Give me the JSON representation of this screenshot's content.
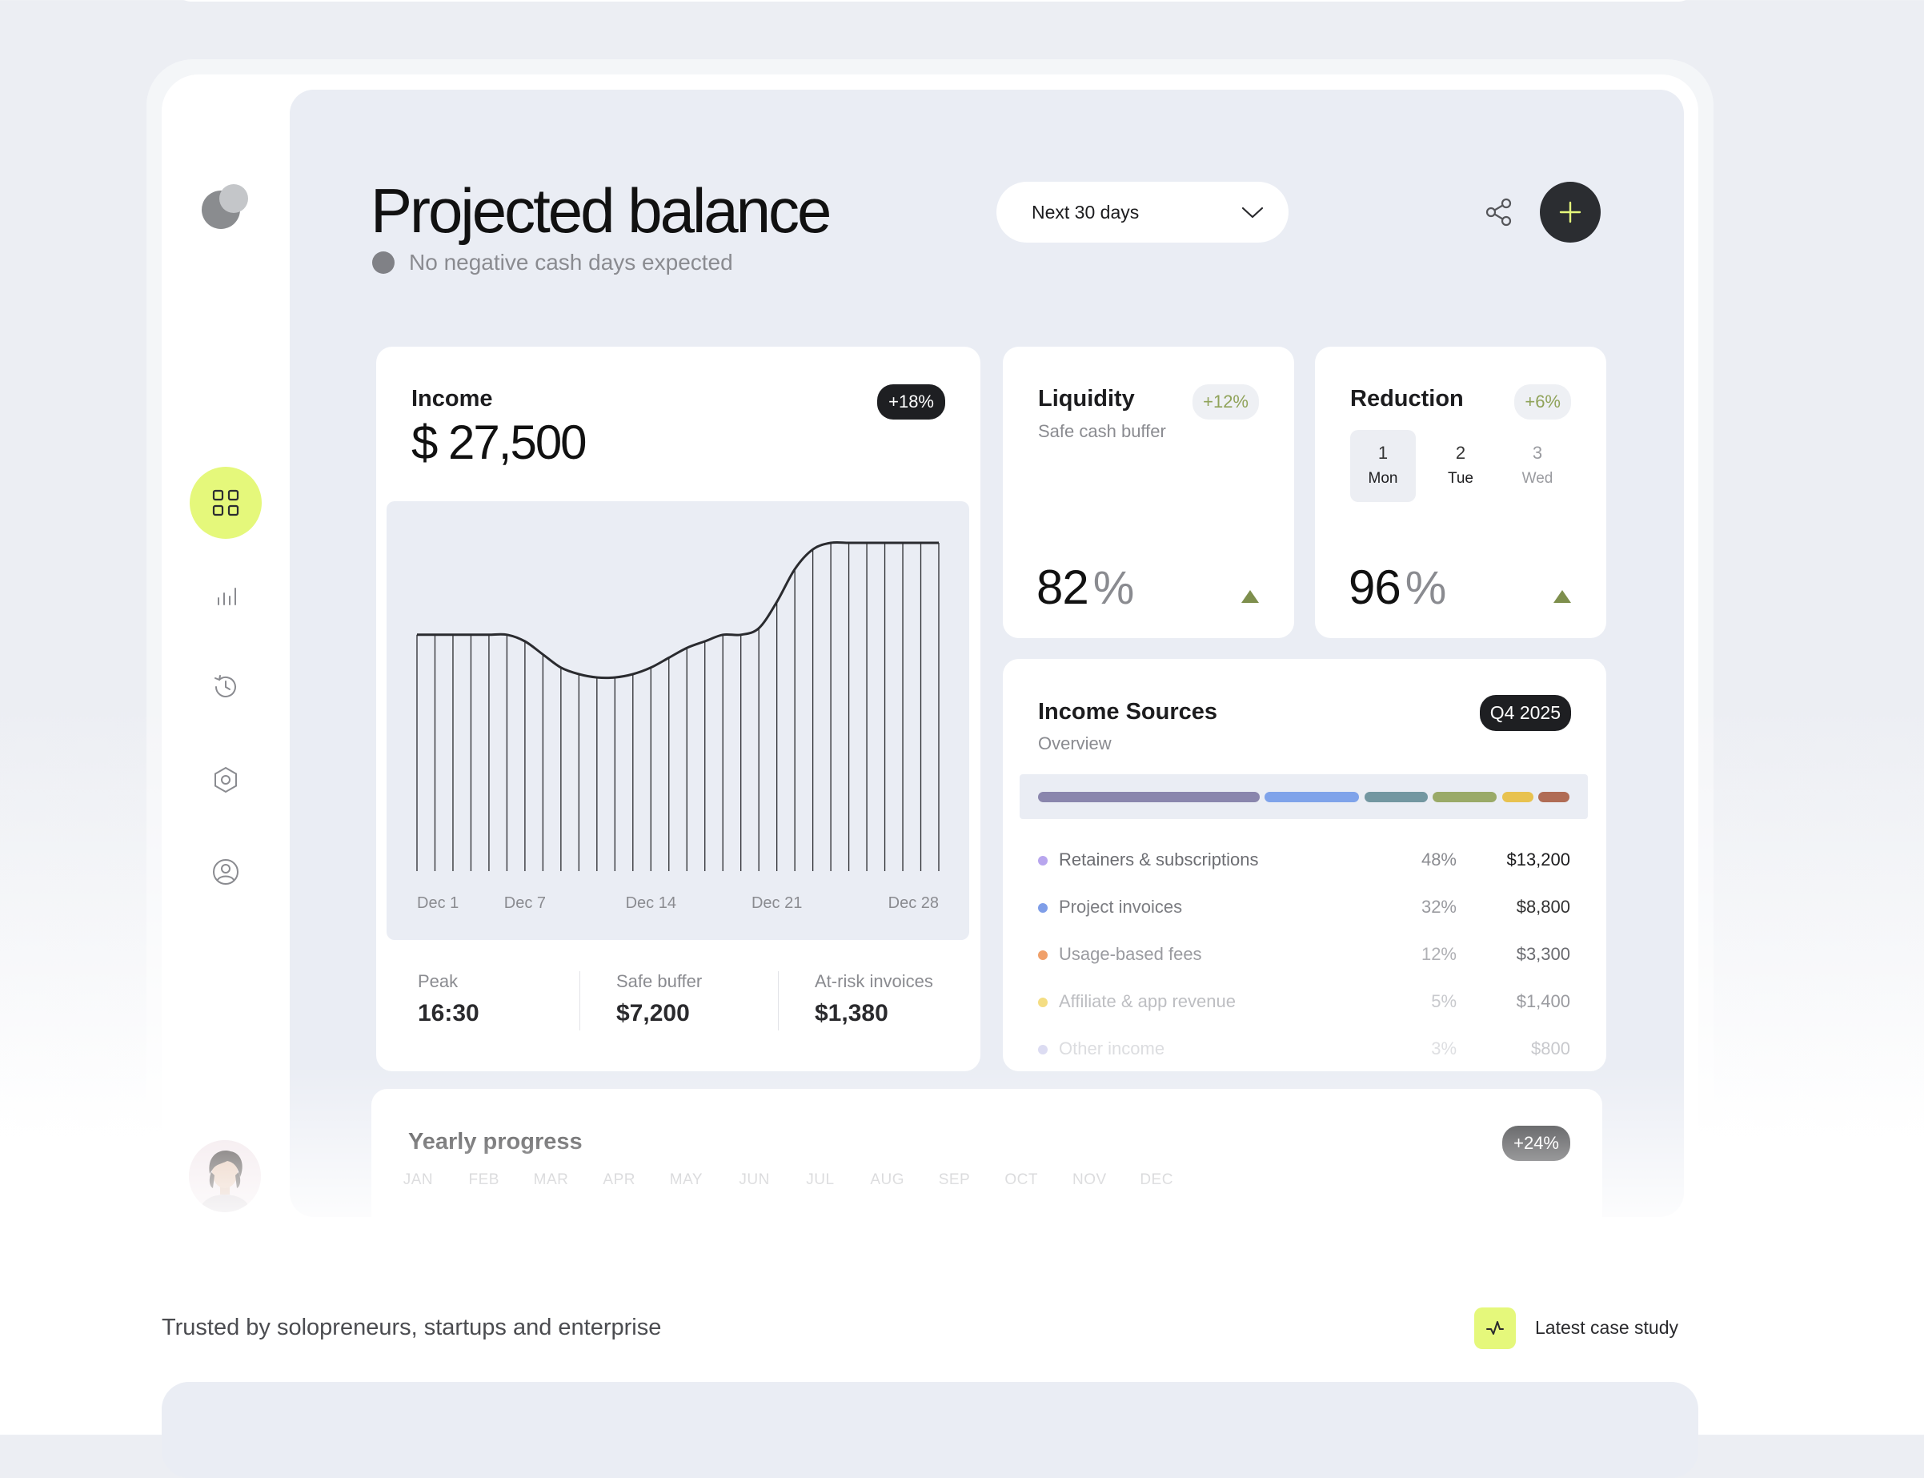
{
  "header": {
    "title": "Projected balance",
    "status": "No negative cash days expected",
    "range_label": "Next 30 days"
  },
  "income": {
    "title": "Income",
    "badge": "+18%",
    "amount": "$ 27,500",
    "x_ticks": [
      "Dec 1",
      "Dec 7",
      "Dec 14",
      "Dec 21",
      "Dec 28"
    ],
    "stats": [
      {
        "label": "Peak",
        "value": "16:30"
      },
      {
        "label": "Safe buffer",
        "value": "$7,200"
      },
      {
        "label": "At-risk invoices",
        "value": "$1,380"
      }
    ]
  },
  "chart_data": {
    "type": "line",
    "x": [
      "Dec 1",
      "Dec 2",
      "Dec 3",
      "Dec 4",
      "Dec 5",
      "Dec 6",
      "Dec 7",
      "Dec 8",
      "Dec 9",
      "Dec 10",
      "Dec 11",
      "Dec 12",
      "Dec 13",
      "Dec 14",
      "Dec 15",
      "Dec 16",
      "Dec 17",
      "Dec 18",
      "Dec 19",
      "Dec 20",
      "Dec 21",
      "Dec 22",
      "Dec 23",
      "Dec 24",
      "Dec 25",
      "Dec 26",
      "Dec 27",
      "Dec 28",
      "Dec 29",
      "Dec 30"
    ],
    "values": [
      0.72,
      0.72,
      0.72,
      0.72,
      0.72,
      0.72,
      0.7,
      0.66,
      0.62,
      0.6,
      0.59,
      0.59,
      0.6,
      0.62,
      0.65,
      0.68,
      0.7,
      0.72,
      0.72,
      0.74,
      0.82,
      0.92,
      0.98,
      1.0,
      1.0,
      1.0,
      1.0,
      1.0,
      1.0,
      1.0
    ],
    "xlabel": "",
    "ylabel": "",
    "ylim": [
      0,
      1
    ],
    "grid": false,
    "title": ""
  },
  "liquidity": {
    "title": "Liquidity",
    "badge": "+12%",
    "subtitle": "Safe cash buffer",
    "value": "82",
    "unit": "%"
  },
  "reduction": {
    "title": "Reduction",
    "badge": "+6%",
    "value": "96",
    "unit": "%",
    "days": [
      {
        "num": "1",
        "name": "Mon"
      },
      {
        "num": "2",
        "name": "Tue"
      },
      {
        "num": "3",
        "name": "Wed"
      }
    ]
  },
  "sources": {
    "title": "Income Sources",
    "subtitle": "Overview",
    "badge": "Q4 2025",
    "bar_colors": [
      "#8a86ad",
      "#7fa3ea",
      "#7397a1",
      "#9aaa68",
      "#e8c24f",
      "#b06c55"
    ],
    "items": [
      {
        "name": "Retainers & subscriptions",
        "pct": "48%",
        "value": "$13,200",
        "color": "#b8a6ee"
      },
      {
        "name": "Project invoices",
        "pct": "32%",
        "value": "$8,800",
        "color": "#7f9ee8"
      },
      {
        "name": "Usage-based fees",
        "pct": "12%",
        "value": "$3,300",
        "color": "#f0a06a"
      },
      {
        "name": "Affiliate & app revenue",
        "pct": "5%",
        "value": "$1,400",
        "color": "#f4dd83"
      },
      {
        "name": "Other income",
        "pct": "3%",
        "value": "$800",
        "color": "#dcdcf2"
      }
    ]
  },
  "yearly": {
    "title": "Yearly progress",
    "badge": "+24%",
    "months": [
      "JAN",
      "FEB",
      "MAR",
      "APR",
      "MAY",
      "JUN",
      "JUL",
      "AUG",
      "SEP",
      "OCT",
      "NOV",
      "DEC"
    ]
  },
  "footer": {
    "trusted": "Trusted by solopreneurs, startups and enterprise",
    "case_study": "Latest case study"
  },
  "icons": {
    "logo": "logo-icon",
    "dashboard": "grid-icon",
    "analytics": "bar-chart-icon",
    "history": "history-icon",
    "settings": "hexagon-settings-icon",
    "profile": "user-circle-icon",
    "share": "share-icon",
    "add": "plus-icon",
    "dropdown": "chevron-down-icon",
    "case_study": "activity-icon"
  },
  "colors": {
    "accent": "#e5f87b",
    "positive": "#7e8f4d",
    "dark": "#1e1f22"
  }
}
